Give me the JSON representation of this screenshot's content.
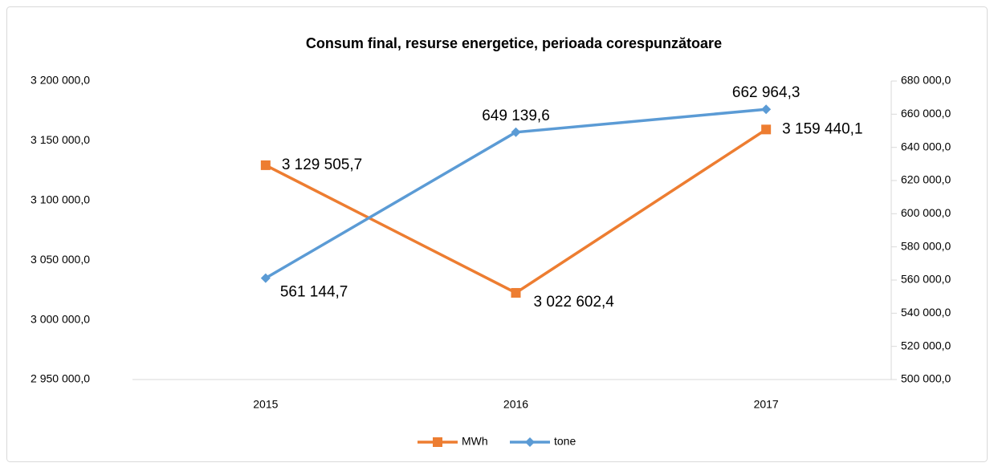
{
  "chart_data": {
    "type": "line",
    "title": "Consum final, resurse energetice, perioada corespunzătoare",
    "categories": [
      "2015",
      "2016",
      "2017"
    ],
    "series": [
      {
        "name": "MWh",
        "color": "#ed7d31",
        "marker": "square",
        "values": [
          3129505.7,
          3022602.4,
          3159440.1
        ],
        "value_labels": [
          "3 129 505,7",
          "3 022 602,4",
          "3 159 440,1"
        ]
      },
      {
        "name": "tone",
        "color": "#5b9bd5",
        "marker": "diamond",
        "axis": "y2",
        "values": [
          561144.7,
          649139.6,
          662964.3
        ],
        "value_labels": [
          "561 144,7",
          "649 139,6",
          "662 964,3"
        ]
      }
    ],
    "ylim": [
      2950000,
      3200000
    ],
    "yticks": [
      {
        "value": 2950000,
        "label": "2 950 000,0"
      },
      {
        "value": 3000000,
        "label": "3 000 000,0"
      },
      {
        "value": 3050000,
        "label": "3 050 000,0"
      },
      {
        "value": 3100000,
        "label": "3 100 000,0"
      },
      {
        "value": 3150000,
        "label": "3 150 000,0"
      },
      {
        "value": 3200000,
        "label": "3 200 000,0"
      }
    ],
    "y2lim": [
      500000,
      680000
    ],
    "y2ticks": [
      {
        "value": 500000,
        "label": "500 000,0"
      },
      {
        "value": 520000,
        "label": "520 000,0"
      },
      {
        "value": 540000,
        "label": "540 000,0"
      },
      {
        "value": 560000,
        "label": "560 000,0"
      },
      {
        "value": 580000,
        "label": "580 000,0"
      },
      {
        "value": 600000,
        "label": "600 000,0"
      },
      {
        "value": 620000,
        "label": "620 000,0"
      },
      {
        "value": 640000,
        "label": "640 000,0"
      },
      {
        "value": 660000,
        "label": "660 000,0"
      },
      {
        "value": 680000,
        "label": "680 000,0"
      }
    ],
    "grid": false,
    "legend": "bottom"
  }
}
